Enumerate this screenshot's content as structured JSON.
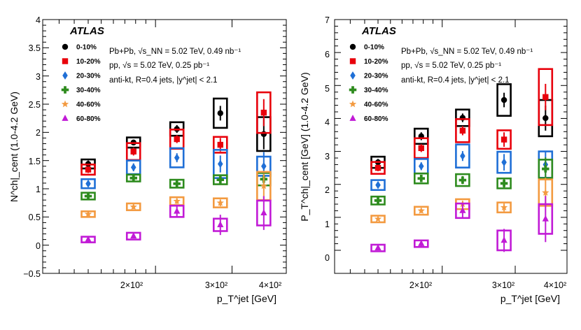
{
  "chart_data": [
    {
      "type": "scatter",
      "panel": "left",
      "atlas_label": "ATLAS",
      "info_lines": [
        "Pb+Pb, √s_NN = 5.02 TeV, 0.49 nb⁻¹",
        "pp, √s = 5.02 TeV, 0.25 pb⁻¹",
        "anti-kt, R=0.4 jets, |y^jet| < 2.1"
      ],
      "xlabel": "p_T^jet [GeV]",
      "ylabel": "N^ch|_cent (1.0-4.2 GeV)",
      "xscale": "log",
      "xlim": [
        110,
        400
      ],
      "ylim": [
        -0.5,
        4
      ],
      "yticks": [
        "−0.5",
        "0",
        "0.5",
        "1",
        "1.5",
        "2",
        "2.5",
        "3",
        "3.5",
        "4"
      ],
      "xticks": [
        "2×10²",
        "3×10²",
        "4×10²"
      ],
      "x": [
        140,
        178,
        224,
        282,
        355
      ],
      "legend_position": "top-left",
      "series": [
        {
          "name": "0-10%",
          "color": "#000000",
          "marker": "circle",
          "values": [
            1.44,
            1.82,
            2.06,
            2.34,
            1.97
          ],
          "stat": [
            0.06,
            0.05,
            0.07,
            0.13,
            0.27
          ],
          "sys": [
            0.08,
            0.09,
            0.12,
            0.26,
            0.3
          ]
        },
        {
          "name": "10-20%",
          "color": "#e8000b",
          "marker": "square",
          "values": [
            1.34,
            1.66,
            1.88,
            1.78,
            2.35
          ],
          "stat": [
            0.06,
            0.07,
            0.07,
            0.12,
            0.24
          ],
          "sys": [
            0.09,
            0.15,
            0.17,
            0.14,
            0.36
          ]
        },
        {
          "name": "20-30%",
          "color": "#1f6fd6",
          "marker": "diamond",
          "values": [
            1.09,
            1.38,
            1.55,
            1.44,
            1.4
          ],
          "stat": [
            0.05,
            0.07,
            0.08,
            0.15,
            0.25
          ],
          "sys": [
            0.08,
            0.12,
            0.17,
            0.25,
            0.17
          ]
        },
        {
          "name": "30-40%",
          "color": "#2e8b1e",
          "marker": "cross",
          "values": [
            0.87,
            1.19,
            1.09,
            1.16,
            1.17
          ],
          "stat": [
            0.05,
            0.05,
            0.06,
            0.08,
            0.14
          ],
          "sys": [
            0.06,
            0.06,
            0.07,
            0.08,
            0.11
          ]
        },
        {
          "name": "40-60%",
          "color": "#f39a40",
          "marker": "star",
          "values": [
            0.55,
            0.68,
            0.78,
            0.75,
            1.05
          ],
          "stat": [
            0.03,
            0.04,
            0.05,
            0.06,
            0.22
          ],
          "sys": [
            0.05,
            0.06,
            0.07,
            0.08,
            0.25
          ]
        },
        {
          "name": "60-80%",
          "color": "#c11ad6",
          "marker": "triangle",
          "values": [
            0.1,
            0.16,
            0.6,
            0.36,
            0.57
          ],
          "stat": [
            0.03,
            0.04,
            0.1,
            0.18,
            0.3
          ],
          "sys": [
            0.05,
            0.06,
            0.1,
            0.11,
            0.22
          ]
        }
      ]
    },
    {
      "type": "scatter",
      "panel": "right",
      "atlas_label": "ATLAS",
      "info_lines": [
        "Pb+Pb, √s_NN = 5.02 TeV, 0.49 nb⁻¹",
        "pp, √s = 5.02 TeV, 0.25 pb⁻¹",
        "anti-kt, R=0.4 jets, |y^jet| < 2.1"
      ],
      "xlabel": "p_T^jet [GeV]",
      "ylabel": "P_T^ch|_cent [GeV] (1.0-4.2 GeV)",
      "xscale": "log",
      "xlim": [
        110,
        400
      ],
      "ylim": [
        -0.7,
        7
      ],
      "yticks": [
        "0",
        "1",
        "2",
        "3",
        "4",
        "5",
        "6",
        "7"
      ],
      "xticks": [
        "2×10²",
        "3×10²",
        "4×10²"
      ],
      "x": [
        140,
        178,
        224,
        282,
        355
      ],
      "legend_position": "top-left",
      "series": [
        {
          "name": "0-10%",
          "color": "#000000",
          "marker": "circle",
          "values": [
            2.67,
            3.46,
            4.02,
            4.56,
            4.01
          ],
          "stat": [
            0.1,
            0.12,
            0.13,
            0.22,
            0.38
          ],
          "sys": [
            0.17,
            0.23,
            0.25,
            0.48,
            0.55
          ]
        },
        {
          "name": "10-20%",
          "color": "#e8000b",
          "marker": "square",
          "values": [
            2.5,
            3.1,
            3.63,
            3.36,
            4.65
          ],
          "stat": [
            0.1,
            0.12,
            0.14,
            0.22,
            0.4
          ],
          "sys": [
            0.18,
            0.3,
            0.35,
            0.28,
            0.85
          ]
        },
        {
          "name": "20-30%",
          "color": "#1f6fd6",
          "marker": "diamond",
          "values": [
            1.98,
            2.55,
            2.86,
            2.67,
            2.6
          ],
          "stat": [
            0.08,
            0.12,
            0.15,
            0.25,
            0.4
          ],
          "sys": [
            0.15,
            0.22,
            0.35,
            0.32,
            0.4
          ]
        },
        {
          "name": "30-40%",
          "color": "#2e8b1e",
          "marker": "cross",
          "values": [
            1.51,
            2.18,
            2.13,
            2.03,
            2.47
          ],
          "stat": [
            0.07,
            0.1,
            0.12,
            0.15,
            0.35
          ],
          "sys": [
            0.12,
            0.15,
            0.18,
            0.15,
            0.28
          ]
        },
        {
          "name": "40-60%",
          "color": "#f39a40",
          "marker": "star",
          "values": [
            0.95,
            1.2,
            1.4,
            1.3,
            1.75
          ],
          "stat": [
            0.05,
            0.07,
            0.1,
            0.12,
            0.45
          ],
          "sys": [
            0.1,
            0.12,
            0.15,
            0.15,
            0.4
          ]
        },
        {
          "name": "60-80%",
          "color": "#c11ad6",
          "marker": "triangle",
          "values": [
            0.07,
            0.2,
            1.2,
            0.3,
            0.95
          ],
          "stat": [
            0.05,
            0.08,
            0.2,
            0.35,
            0.7
          ],
          "sys": [
            0.1,
            0.1,
            0.22,
            0.3,
            0.45
          ]
        }
      ]
    }
  ]
}
